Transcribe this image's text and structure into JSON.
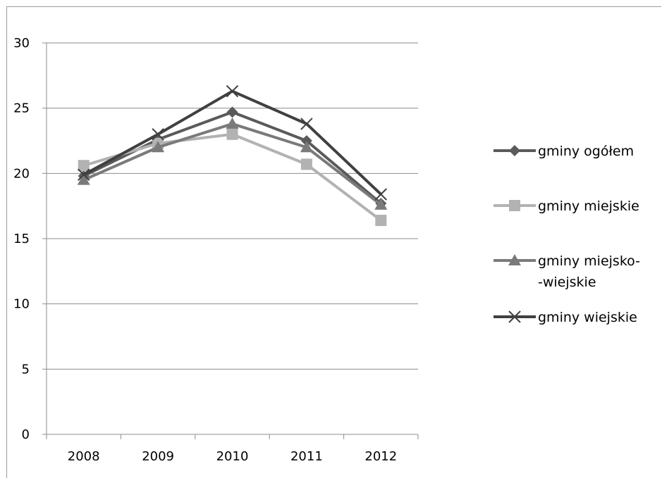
{
  "chart_data": {
    "type": "line",
    "categories": [
      "2008",
      "2009",
      "2010",
      "2011",
      "2012"
    ],
    "ylim": [
      0,
      30
    ],
    "yticks": [
      0,
      5,
      10,
      15,
      20,
      25,
      30
    ],
    "grid": true,
    "legend_position": "right",
    "series": [
      {
        "name": "gminy ogółem",
        "marker": "diamond",
        "color": "#5a5a5a",
        "values": [
          19.8,
          22.6,
          24.7,
          22.5,
          17.7
        ]
      },
      {
        "name": "gminy miejskie",
        "marker": "square",
        "color": "#b2b2b2",
        "values": [
          20.6,
          22.3,
          23.0,
          20.7,
          16.4
        ]
      },
      {
        "name": "gminy miejsko-\n-wiejskie",
        "marker": "triangle",
        "color": "#7a7a7a",
        "values": [
          19.5,
          22.0,
          23.8,
          22.0,
          17.6
        ]
      },
      {
        "name": "gminy wiejskie",
        "marker": "x",
        "color": "#404040",
        "values": [
          19.9,
          23.0,
          26.3,
          23.8,
          18.4
        ]
      }
    ]
  }
}
